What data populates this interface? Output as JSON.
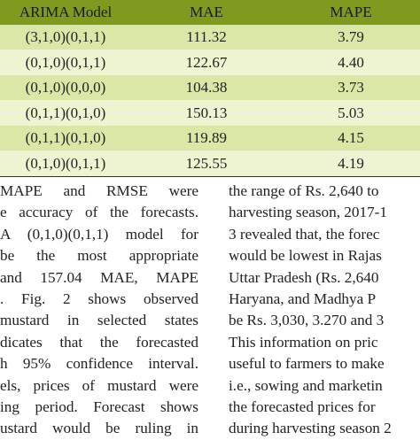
{
  "table": {
    "headers": [
      "ARIMA Model",
      "MAE",
      "MAPE"
    ],
    "rows": [
      {
        "model": "(3,1,0)(0,1,1)",
        "mae": "111.32",
        "mape": "3.79"
      },
      {
        "model": "(0,1,0)(0,1,1)",
        "mae": "122.67",
        "mape": "4.40"
      },
      {
        "model": "(0,1,0)(0,0,0)",
        "mae": "104.38",
        "mape": "3.73"
      },
      {
        "model": "(0,1,1)(0,1,0)",
        "mae": "150.13",
        "mape": "5.03"
      },
      {
        "model": "(0,1,1)(0,1,0)",
        "mae": "119.89",
        "mape": "4.15"
      },
      {
        "model": "(0,1,0)(0,1,1)",
        "mae": "125.55",
        "mape": "4.19"
      }
    ]
  },
  "body_text": {
    "left_lines": [
      "MAPE and RMSE were",
      "e accuracy of the forecasts.",
      "A (0,1,0)(0,1,1) model for",
      "be the most appropriate",
      "and 157.04 MAE, MAPE",
      ". Fig. 2 shows observed",
      "mustard in selected states",
      "dicates that the forecasted",
      "h 95% confidence interval.",
      "els, prices of mustard were",
      "ing period. Forecast shows",
      "ustard would be ruling in"
    ],
    "right_lines": [
      "the range of Rs. 2,640 to",
      "harvesting season, 2017-1",
      "3 revealed that, the forec",
      "would be lowest in Rajas",
      "Uttar Pradesh (Rs. 2,640",
      "Haryana, and Madhya P",
      "be Rs. 3,030, 3.270 and 3",
      "This information on pric",
      "useful to farmers to make",
      "i.e., sowing and marketin",
      "the forecasted prices for",
      "during harvesting season 2"
    ]
  },
  "colors": {
    "header_bg": "#7f9a1e",
    "row_dark": "#dbe7a6",
    "row_light": "#eef4d2"
  }
}
